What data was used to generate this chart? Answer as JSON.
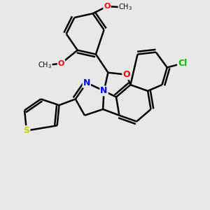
{
  "background_color": "#e8e8e8",
  "bond_color": "#000000",
  "bond_width": 1.8,
  "atom_colors": {
    "S": "#cccc00",
    "N": "#0000ff",
    "O": "#ff0000",
    "Cl": "#00bb00",
    "C": "#000000"
  },
  "font_size": 9,
  "figsize": [
    3.0,
    3.0
  ],
  "dpi": 100
}
